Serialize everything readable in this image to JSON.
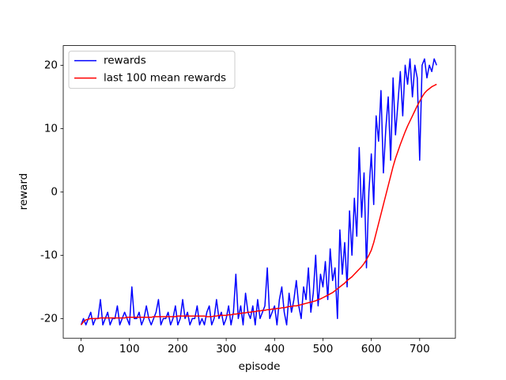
{
  "chart_data": {
    "type": "line",
    "x_label": "episode",
    "y_label": "reward",
    "x": [
      0,
      5,
      10,
      15,
      20,
      25,
      30,
      35,
      40,
      45,
      50,
      55,
      60,
      65,
      70,
      75,
      80,
      85,
      90,
      95,
      100,
      105,
      110,
      115,
      120,
      125,
      130,
      135,
      140,
      145,
      150,
      155,
      160,
      165,
      170,
      175,
      180,
      185,
      190,
      195,
      200,
      205,
      210,
      215,
      220,
      225,
      230,
      235,
      240,
      245,
      250,
      255,
      260,
      265,
      270,
      275,
      280,
      285,
      290,
      295,
      300,
      305,
      310,
      315,
      320,
      325,
      330,
      335,
      340,
      345,
      350,
      355,
      360,
      365,
      370,
      375,
      380,
      385,
      390,
      395,
      400,
      405,
      410,
      415,
      420,
      425,
      430,
      435,
      440,
      445,
      450,
      455,
      460,
      465,
      470,
      475,
      480,
      485,
      490,
      495,
      500,
      505,
      510,
      515,
      520,
      525,
      530,
      535,
      540,
      545,
      550,
      555,
      560,
      565,
      570,
      575,
      580,
      585,
      590,
      595,
      600,
      605,
      610,
      615,
      620,
      625,
      630,
      635,
      640,
      645,
      650,
      655,
      660,
      665,
      670,
      675,
      680,
      685,
      690,
      695,
      700,
      705,
      710,
      715,
      720,
      725,
      730,
      735
    ],
    "series": [
      {
        "name": "rewards",
        "color": "#0000ff",
        "values": [
          -21,
          -20,
          -21,
          -20,
          -19,
          -21,
          -20,
          -20,
          -17,
          -21,
          -20,
          -19,
          -21,
          -20,
          -20,
          -18,
          -21,
          -20,
          -19,
          -20,
          -21,
          -15,
          -20,
          -20,
          -19,
          -21,
          -20,
          -18,
          -20,
          -21,
          -20,
          -19,
          -17,
          -21,
          -20,
          -20,
          -19,
          -21,
          -20,
          -18,
          -21,
          -20,
          -17,
          -20,
          -19,
          -21,
          -20,
          -20,
          -18,
          -21,
          -20,
          -21,
          -19,
          -18,
          -21,
          -20,
          -17,
          -20,
          -19,
          -21,
          -20,
          -18,
          -21,
          -19,
          -13,
          -20,
          -18,
          -21,
          -16,
          -19,
          -20,
          -18,
          -21,
          -17,
          -20,
          -19,
          -18,
          -12,
          -20,
          -19,
          -18,
          -21,
          -17,
          -15,
          -19,
          -21,
          -16,
          -19,
          -17,
          -14,
          -18,
          -20,
          -15,
          -17,
          -12,
          -19,
          -16,
          -10,
          -18,
          -13,
          -15,
          -11,
          -17,
          -9,
          -14,
          -12,
          -20,
          -6,
          -13,
          -8,
          -15,
          -3,
          -10,
          -1,
          -7,
          7,
          -4,
          3,
          -12,
          0,
          6,
          -2,
          12,
          8,
          16,
          3,
          10,
          15,
          5,
          18,
          9,
          14,
          19,
          12,
          20,
          17,
          21,
          15,
          20,
          18,
          5,
          20,
          21,
          18,
          20,
          19,
          21,
          20
        ]
      },
      {
        "name": "last 100 mean rewards",
        "color": "#ff0000",
        "values": [
          -21,
          -20.5,
          -20.2,
          -20.1,
          -20,
          -20,
          -20,
          -20,
          -19.9,
          -19.9,
          -19.9,
          -19.9,
          -19.9,
          -19.9,
          -19.9,
          -19.9,
          -19.9,
          -19.9,
          -19.9,
          -19.8,
          -19.8,
          -19.8,
          -19.8,
          -19.8,
          -19.8,
          -19.8,
          -19.8,
          -19.8,
          -19.8,
          -19.8,
          -19.7,
          -19.7,
          -19.7,
          -19.7,
          -19.7,
          -19.7,
          -19.7,
          -19.7,
          -19.7,
          -19.7,
          -19.6,
          -19.6,
          -19.6,
          -19.6,
          -19.6,
          -19.6,
          -19.6,
          -19.6,
          -19.6,
          -19.6,
          -19.6,
          -19.6,
          -19.7,
          -19.7,
          -19.7,
          -19.6,
          -19.6,
          -19.5,
          -19.5,
          -19.5,
          -19.5,
          -19.4,
          -19.4,
          -19.3,
          -19.3,
          -19.2,
          -19.2,
          -19.1,
          -19.1,
          -19.0,
          -19.0,
          -18.9,
          -18.9,
          -18.8,
          -18.8,
          -18.7,
          -18.7,
          -18.6,
          -18.6,
          -18.5,
          -18.5,
          -18.4,
          -18.4,
          -18.3,
          -18.3,
          -18.2,
          -18.1,
          -18.1,
          -18.0,
          -18.0,
          -17.9,
          -17.8,
          -17.7,
          -17.6,
          -17.5,
          -17.4,
          -17.3,
          -17.2,
          -17.0,
          -16.9,
          -16.7,
          -16.5,
          -16.3,
          -16.1,
          -15.9,
          -15.6,
          -15.3,
          -15.0,
          -14.7,
          -14.4,
          -14.0,
          -13.7,
          -13.4,
          -13.0,
          -12.6,
          -12.2,
          -11.8,
          -11.3,
          -10.7,
          -10.0,
          -9.2,
          -8.0,
          -6.5,
          -5.0,
          -3.5,
          -2.0,
          -0.5,
          1.0,
          2.5,
          4.0,
          5.3,
          6.4,
          7.5,
          8.5,
          9.5,
          10.4,
          11.2,
          12.0,
          12.8,
          13.6,
          14.3,
          15.0,
          15.6,
          16.0,
          16.3,
          16.6,
          16.8,
          17.0
        ]
      }
    ],
    "xlim": [
      -36.85,
      773.85
    ],
    "ylim": [
      -23.1,
      23.1
    ],
    "xticks": [
      0,
      100,
      200,
      300,
      400,
      500,
      600,
      700
    ],
    "yticks": [
      -20,
      -10,
      0,
      10,
      20
    ],
    "legend": "upper left"
  }
}
